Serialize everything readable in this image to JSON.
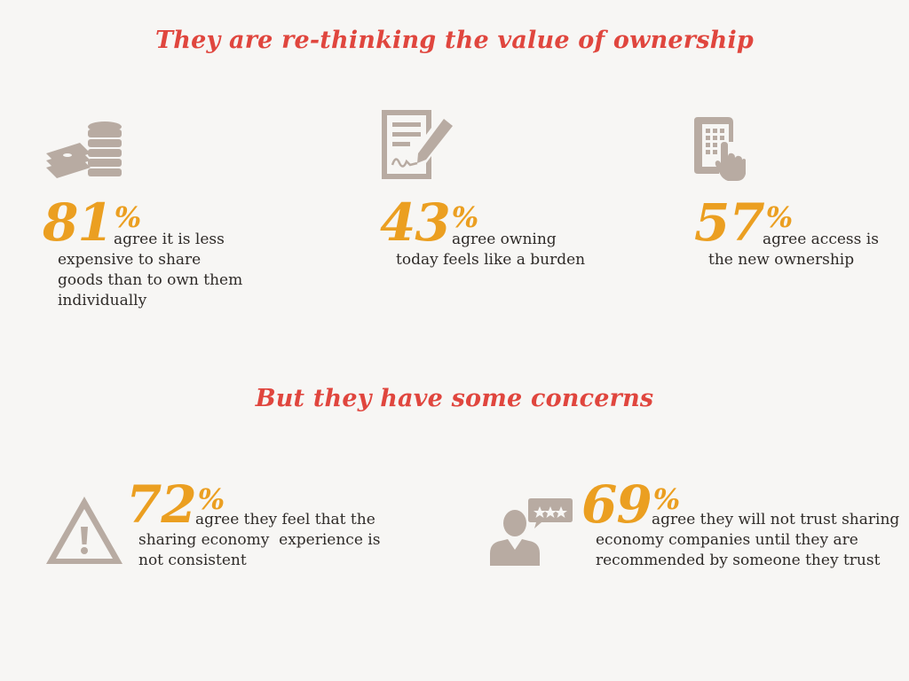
{
  "headings": {
    "top": "They are re-thinking the value of ownership",
    "middle": "But they have some concerns"
  },
  "stats": [
    {
      "icon": "coins-and-cash-icon",
      "number": "81",
      "percent_sign": "%",
      "lines": [
        "agree it is less",
        "expensive to share",
        "goods than to own them",
        "individually"
      ]
    },
    {
      "icon": "signed-document-icon",
      "number": "43",
      "percent_sign": "%",
      "lines": [
        "agree owning",
        "today feels like a burden"
      ]
    },
    {
      "icon": "smartphone-touch-icon",
      "number": "57",
      "percent_sign": "%",
      "lines": [
        "agree access is",
        "the new ownership"
      ]
    },
    {
      "icon": "warning-triangle-icon",
      "number": "72",
      "percent_sign": "%",
      "lines": [
        "agree they feel that the",
        "sharing economy  experience is",
        "not consistent"
      ]
    },
    {
      "icon": "person-rating-bubble-icon",
      "number": "69",
      "percent_sign": "%",
      "lines": [
        "agree they will not trust sharing",
        "economy companies until they are",
        "recommended by someone they trust"
      ]
    }
  ],
  "colors": {
    "heading": "#e0463e",
    "number": "#eb9f21",
    "icon": "#b8aba2",
    "text": "#2f2b28",
    "background": "#f7f6f4"
  }
}
